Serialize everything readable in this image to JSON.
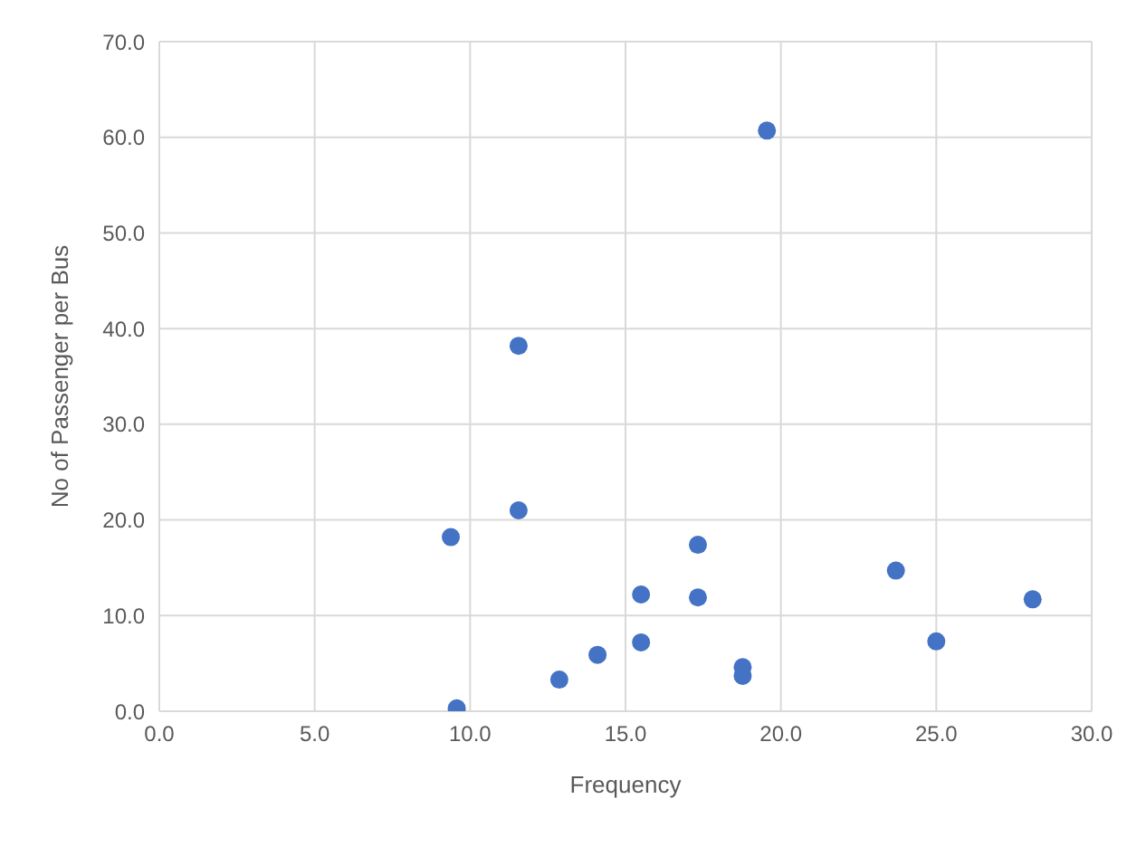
{
  "chart_data": {
    "type": "scatter",
    "xlabel": "Frequency",
    "ylabel": "No of Passenger per Bus",
    "x": [
      19.55,
      11.56,
      9.38,
      11.56,
      17.33,
      23.7,
      15.5,
      17.33,
      28.1,
      25.0,
      15.5,
      14.1,
      18.77,
      18.77,
      12.87,
      9.57
    ],
    "values": [
      60.7,
      38.2,
      18.2,
      21.0,
      17.4,
      14.7,
      12.2,
      11.9,
      11.7,
      7.3,
      7.2,
      5.9,
      4.6,
      3.7,
      3.3,
      0.3
    ],
    "color": "#4472c4",
    "marker": "circle",
    "grid": true,
    "xlim": [
      0,
      30
    ],
    "xticks": [
      {
        "value": 0,
        "label": "0.0"
      },
      {
        "value": 5,
        "label": "5.0"
      },
      {
        "value": 10,
        "label": "10.0"
      },
      {
        "value": 15,
        "label": "15.0"
      },
      {
        "value": 20,
        "label": "20.0"
      },
      {
        "value": 25,
        "label": "25.0"
      },
      {
        "value": 30,
        "label": "30.0"
      }
    ],
    "ylim": [
      0,
      70
    ],
    "yticks": [
      {
        "value": 0,
        "label": "0.0"
      },
      {
        "value": 10,
        "label": "10.0"
      },
      {
        "value": 20,
        "label": "20.0"
      },
      {
        "value": 30,
        "label": "30.0"
      },
      {
        "value": 40,
        "label": "40.0"
      },
      {
        "value": 50,
        "label": "50.0"
      },
      {
        "value": 60,
        "label": "60.0"
      },
      {
        "value": 70,
        "label": "70.0"
      }
    ]
  }
}
